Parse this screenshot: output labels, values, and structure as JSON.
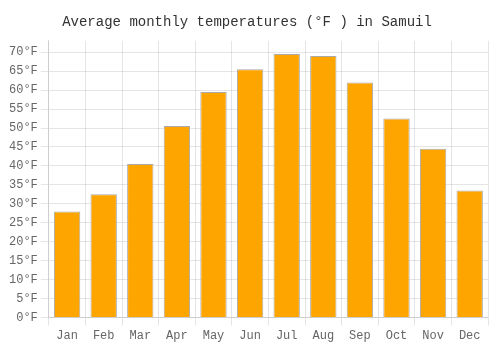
{
  "chart_data": {
    "type": "bar",
    "title": "Average monthly temperatures (°F ) in Samuil",
    "categories": [
      "Jan",
      "Feb",
      "Mar",
      "Apr",
      "May",
      "Jun",
      "Jul",
      "Aug",
      "Sep",
      "Oct",
      "Nov",
      "Dec"
    ],
    "values": [
      28,
      32.5,
      40.5,
      50.5,
      59.5,
      65.5,
      69.5,
      69,
      62,
      52.5,
      44.5,
      33.5
    ],
    "color": "#FFA500",
    "ylim": [
      0,
      73
    ],
    "yticks": [
      {
        "value": 0,
        "label": "0°F"
      },
      {
        "value": 5,
        "label": "5°F"
      },
      {
        "value": 10,
        "label": "10°F"
      },
      {
        "value": 15,
        "label": "15°F"
      },
      {
        "value": 20,
        "label": "20°F"
      },
      {
        "value": 25,
        "label": "25°F"
      },
      {
        "value": 30,
        "label": "30°F"
      },
      {
        "value": 35,
        "label": "35°F"
      },
      {
        "value": 40,
        "label": "40°F"
      },
      {
        "value": 45,
        "label": "45°F"
      },
      {
        "value": 50,
        "label": "50°F"
      },
      {
        "value": 55,
        "label": "55°F"
      },
      {
        "value": 60,
        "label": "60°F"
      },
      {
        "value": 65,
        "label": "65°F"
      },
      {
        "value": 70,
        "label": "70°F"
      }
    ],
    "grid": true
  }
}
